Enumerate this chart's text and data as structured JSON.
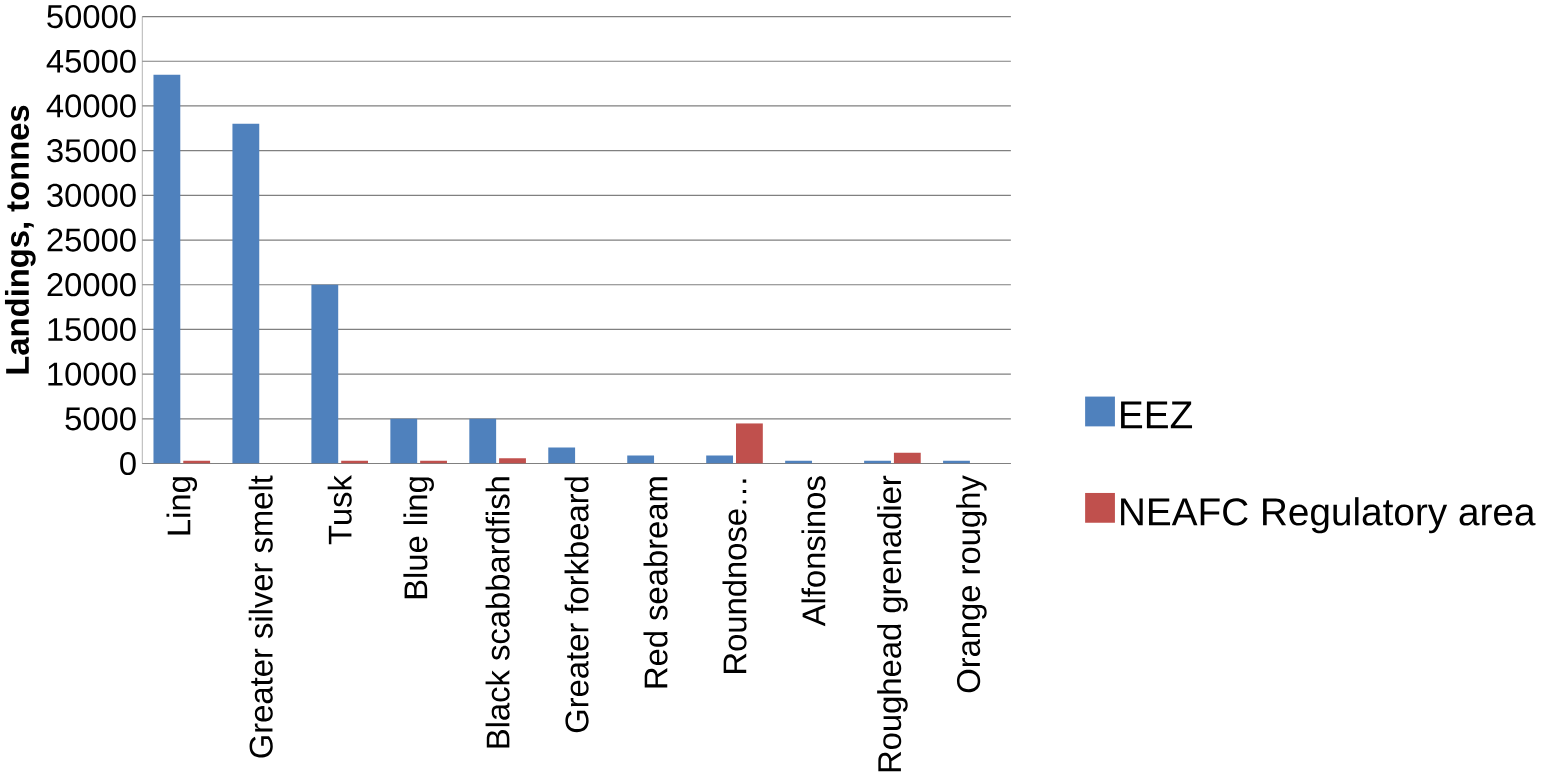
{
  "chart_data": {
    "type": "bar",
    "ylabel": "Landings, tonnes",
    "categories": [
      "Ling",
      "Greater silver smelt",
      "Tusk",
      "Blue ling",
      "Black scabbardfish",
      "Greater forkbeard",
      "Red seabream",
      "Roundnose…",
      "Alfonsinos",
      "Roughead grenadier",
      "Orange roughy"
    ],
    "series": [
      {
        "name": "EEZ",
        "color": "#4f81bd",
        "values": [
          43500,
          38000,
          20000,
          5000,
          5000,
          1800,
          900,
          900,
          300,
          300,
          300
        ]
      },
      {
        "name": "NEAFC Regulatory area",
        "color": "#c0504d",
        "values": [
          300,
          null,
          300,
          300,
          600,
          null,
          null,
          4500,
          null,
          1200,
          null
        ]
      }
    ],
    "ylim": [
      0,
      50000
    ],
    "yticks": [
      0,
      5000,
      10000,
      15000,
      20000,
      25000,
      30000,
      35000,
      40000,
      45000,
      50000
    ],
    "grid": "y",
    "legend": "right"
  }
}
